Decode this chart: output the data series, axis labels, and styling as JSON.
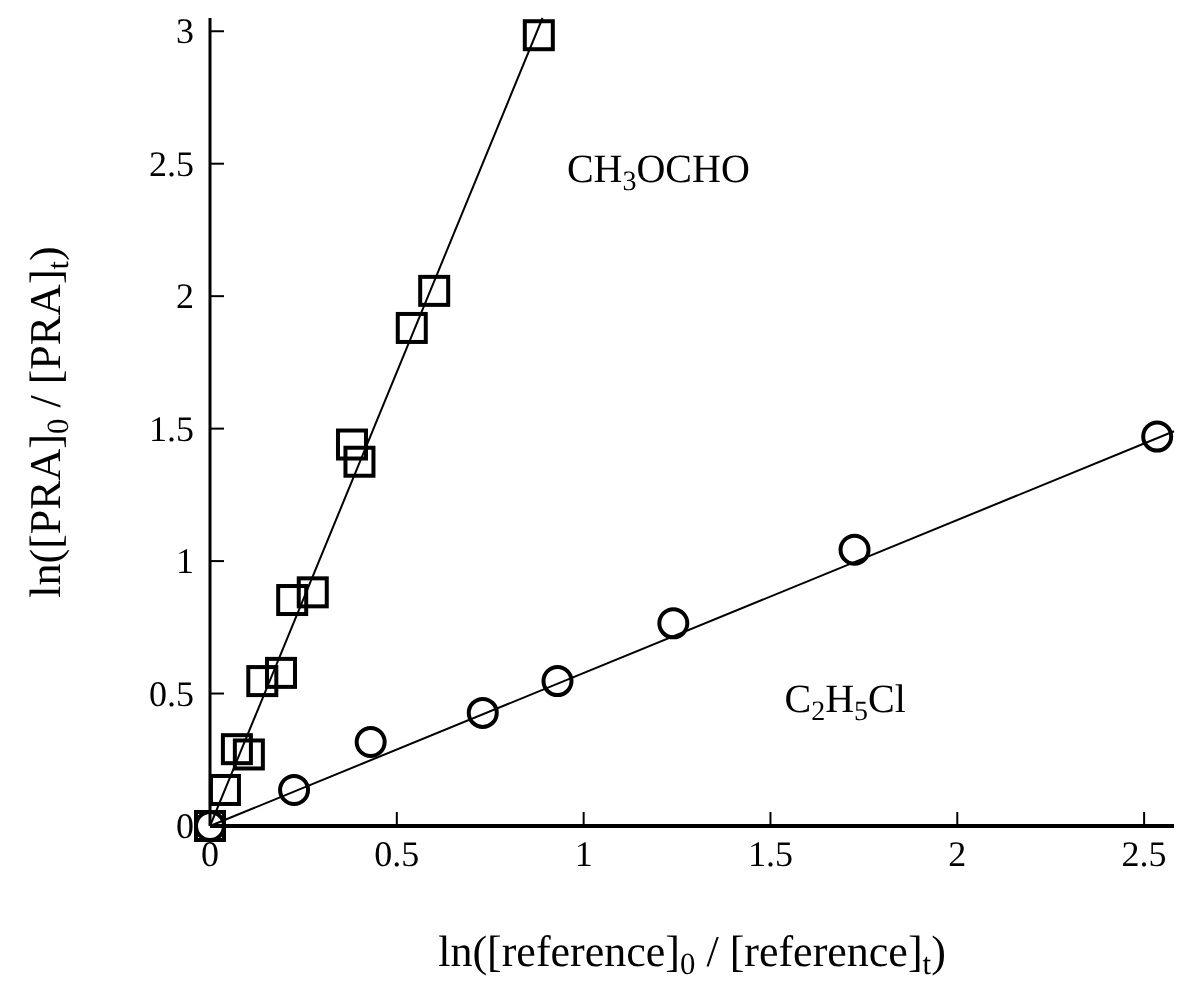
{
  "chart_data": {
    "type": "scatter",
    "xlabel": "ln([reference]$_{0}$ / [reference]$_{t}$)",
    "ylabel": "ln([PRA]$_{0}$ / [PRA]$_{t}$)",
    "xlim": [
      0,
      2.58
    ],
    "ylim": [
      0,
      3.05
    ],
    "xticks": [
      0,
      0.5,
      1,
      1.5,
      2,
      2.5
    ],
    "yticks": [
      0,
      0.5,
      1,
      1.5,
      2,
      2.5,
      3
    ],
    "grid": false,
    "legend": false,
    "series": [
      {
        "name": "CH$_{3}$OCHO",
        "marker": "square",
        "color": "#000000",
        "x": [
          0,
          0.04,
          0.072,
          0.104,
          0.14,
          0.19,
          0.22,
          0.275,
          0.38,
          0.4,
          0.54,
          0.6,
          0.88
        ],
        "values": [
          0,
          0.136,
          0.29,
          0.27,
          0.547,
          0.578,
          0.853,
          0.882,
          1.44,
          1.375,
          1.88,
          2.02,
          2.985
        ]
      },
      {
        "name": "C$_{2}$H$_{5}$Cl",
        "marker": "circle",
        "color": "#000000",
        "x": [
          0,
          0.225,
          0.43,
          0.73,
          0.93,
          1.24,
          1.725,
          2.535
        ],
        "values": [
          0,
          0.136,
          0.317,
          0.427,
          0.547,
          0.765,
          1.043,
          1.47
        ]
      },
      {
        "type": "line",
        "marker": "none",
        "line_style": "solid",
        "color": "#000000",
        "x": [
          0,
          0.89
        ],
        "values": [
          0,
          3.05
        ]
      },
      {
        "type": "line",
        "marker": "none",
        "line_style": "solid",
        "color": "#000000",
        "x": [
          0,
          2.58
        ],
        "values": [
          0,
          1.49
        ]
      }
    ]
  }
}
